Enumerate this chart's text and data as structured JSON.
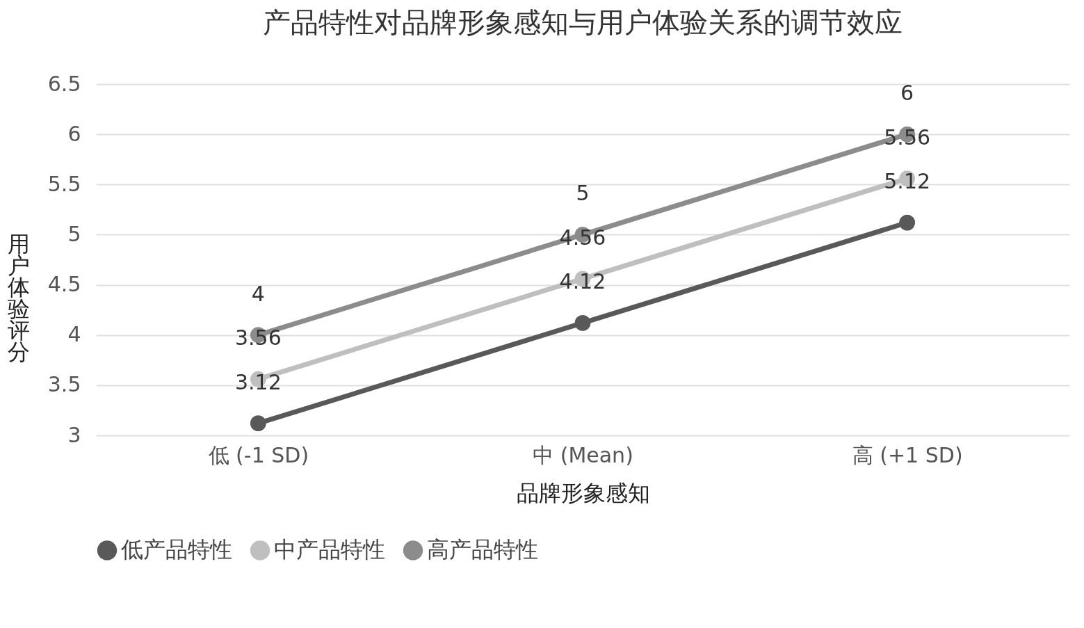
{
  "chart_data": {
    "type": "line",
    "title": "产品特性对品牌形象感知与用户体验关系的调节效应",
    "xlabel": "品牌形象感知",
    "ylabel": "用户体验评分",
    "categories": [
      "低 (-1 SD)",
      "中 (Mean)",
      "高 (+1 SD)"
    ],
    "series": [
      {
        "name": "低产品特性",
        "color": "#595959",
        "values": [
          3.12,
          4.12,
          5.12
        ]
      },
      {
        "name": "中产品特性",
        "color": "#bfbfbf",
        "values": [
          3.56,
          4.56,
          5.56
        ]
      },
      {
        "name": "高产品特性",
        "color": "#8c8c8c",
        "values": [
          4,
          5,
          6
        ]
      }
    ],
    "ylim": [
      3,
      6.5
    ],
    "yticks": [
      3,
      3.5,
      4,
      4.5,
      5,
      5.5,
      6,
      6.5
    ],
    "grid": "y",
    "legend": "bottom",
    "marker": "circle",
    "data_labels": true
  }
}
